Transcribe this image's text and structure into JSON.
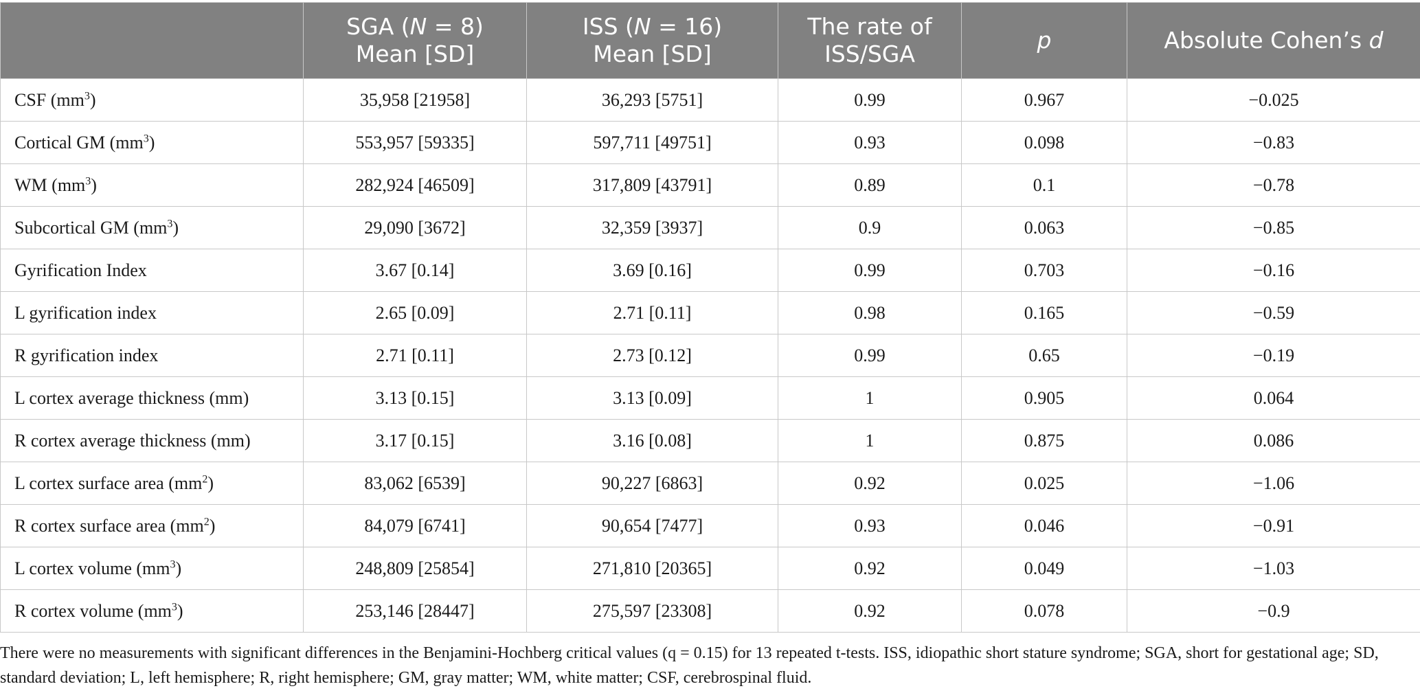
{
  "table": {
    "headers": {
      "col0": "",
      "sga_l1a": "SGA (",
      "sga_l1n": "N",
      "sga_l1b": " = 8)",
      "sga_l2": "Mean [SD]",
      "iss_l1a": "ISS (",
      "iss_l1n": "N",
      "iss_l1b": " = 16)",
      "iss_l2": "Mean [SD]",
      "rate_l1": "The rate of",
      "rate_l2": "ISS/SGA",
      "p": "p",
      "cohen_a": "Absolute Cohen’s ",
      "cohen_d": "d"
    },
    "rows": [
      {
        "label": "CSF (mm",
        "unit_exp": "3",
        "label_end": ")",
        "sga": "35,958 [21958]",
        "iss": "36,293 [5751]",
        "rate": "0.99",
        "p": "0.967",
        "d": "−0.025"
      },
      {
        "label": "Cortical GM (mm",
        "unit_exp": "3",
        "label_end": ")",
        "sga": "553,957 [59335]",
        "iss": "597,711 [49751]",
        "rate": "0.93",
        "p": "0.098",
        "d": "−0.83"
      },
      {
        "label": "WM (mm",
        "unit_exp": "3",
        "label_end": ")",
        "sga": "282,924 [46509]",
        "iss": "317,809 [43791]",
        "rate": "0.89",
        "p": "0.1",
        "d": "−0.78"
      },
      {
        "label": "Subcortical GM (mm",
        "unit_exp": "3",
        "label_end": ")",
        "sga": "29,090 [3672]",
        "iss": "32,359 [3937]",
        "rate": "0.9",
        "p": "0.063",
        "d": "−0.85"
      },
      {
        "label": "Gyrification Index",
        "unit_exp": "",
        "label_end": "",
        "sga": "3.67 [0.14]",
        "iss": "3.69 [0.16]",
        "rate": "0.99",
        "p": "0.703",
        "d": "−0.16"
      },
      {
        "label": "L gyrification index",
        "unit_exp": "",
        "label_end": "",
        "sga": "2.65 [0.09]",
        "iss": "2.71 [0.11]",
        "rate": "0.98",
        "p": "0.165",
        "d": "−0.59"
      },
      {
        "label": "R gyrification index",
        "unit_exp": "",
        "label_end": "",
        "sga": "2.71 [0.11]",
        "iss": "2.73 [0.12]",
        "rate": "0.99",
        "p": "0.65",
        "d": "−0.19"
      },
      {
        "label": "L cortex average thickness (mm)",
        "unit_exp": "",
        "label_end": "",
        "sga": "3.13 [0.15]",
        "iss": "3.13 [0.09]",
        "rate": "1",
        "p": "0.905",
        "d": "0.064"
      },
      {
        "label": "R cortex average thickness (mm)",
        "unit_exp": "",
        "label_end": "",
        "sga": "3.17 [0.15]",
        "iss": "3.16 [0.08]",
        "rate": "1",
        "p": "0.875",
        "d": "0.086"
      },
      {
        "label": "L cortex surface area (mm",
        "unit_exp": "2",
        "label_end": ")",
        "sga": "83,062 [6539]",
        "iss": "90,227 [6863]",
        "rate": "0.92",
        "p": "0.025",
        "d": "−1.06"
      },
      {
        "label": "R cortex surface area (mm",
        "unit_exp": "2",
        "label_end": ")",
        "sga": "84,079 [6741]",
        "iss": "90,654 [7477]",
        "rate": "0.93",
        "p": "0.046",
        "d": "−0.91"
      },
      {
        "label": "L cortex volume (mm",
        "unit_exp": "3",
        "label_end": ")",
        "sga": "248,809 [25854]",
        "iss": "271,810 [20365]",
        "rate": "0.92",
        "p": "0.049",
        "d": "−1.03"
      },
      {
        "label": "R cortex volume (mm",
        "unit_exp": "3",
        "label_end": ")",
        "sga": "253,146 [28447]",
        "iss": "275,597 [23308]",
        "rate": "0.92",
        "p": "0.078",
        "d": "−0.9"
      }
    ]
  },
  "footnote": "There were no measurements with significant differences in the Benjamini-Hochberg critical values (q = 0.15) for 13 repeated t-tests. ISS, idiopathic short stature syndrome; SGA, short for gestational age; SD, standard deviation; L, left hemisphere; R, right hemisphere; GM, gray matter; WM, white matter; CSF, cerebrospinal fluid."
}
